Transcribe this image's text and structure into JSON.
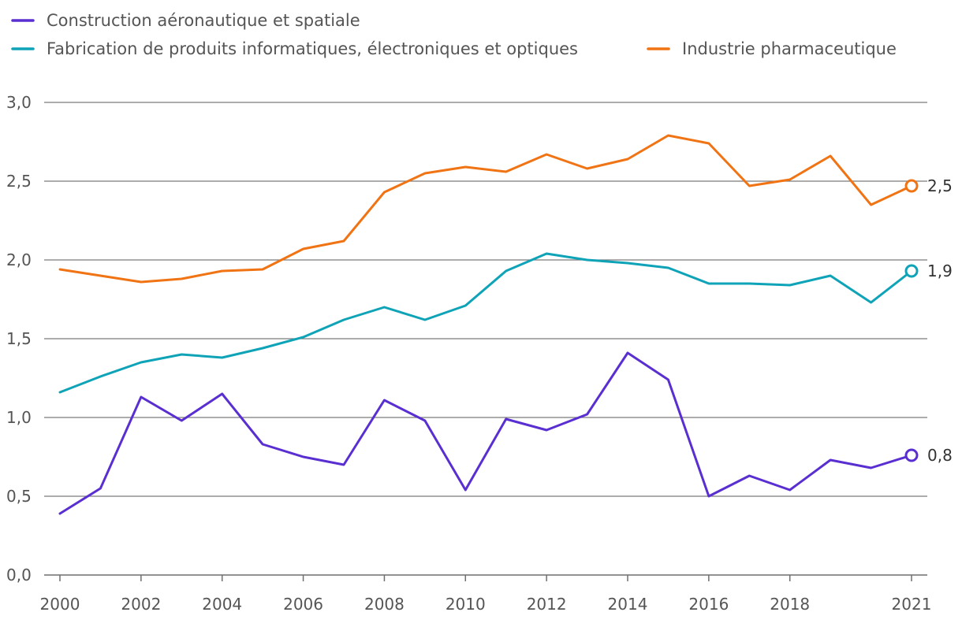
{
  "chart_data": {
    "type": "line",
    "title": "",
    "xlabel": "",
    "ylabel": "",
    "xlim": [
      2000,
      2021
    ],
    "ylim": [
      0,
      3
    ],
    "x": [
      2000,
      2001,
      2002,
      2003,
      2004,
      2005,
      2006,
      2007,
      2008,
      2009,
      2010,
      2011,
      2012,
      2013,
      2014,
      2015,
      2016,
      2017,
      2018,
      2019,
      2020,
      2021
    ],
    "x_tick_labels": [
      "2000",
      "2002",
      "2004",
      "2006",
      "2008",
      "2010",
      "2012",
      "2014",
      "2016",
      "2018",
      "2021"
    ],
    "x_tick_values": [
      2000,
      2002,
      2004,
      2006,
      2008,
      2010,
      2012,
      2014,
      2016,
      2018,
      2021
    ],
    "y_tick_labels": [
      "0,0",
      "0,5",
      "1,0",
      "1,5",
      "2,0",
      "2,5",
      "3,0"
    ],
    "y_tick_values": [
      0,
      0.5,
      1.0,
      1.5,
      2.0,
      2.5,
      3.0
    ],
    "grid": true,
    "legend_position": "top-left",
    "series": [
      {
        "name": "Construction aéronautique et spatiale",
        "color": "#5a2fd1",
        "values": [
          0.39,
          0.55,
          1.13,
          0.98,
          1.15,
          0.83,
          0.75,
          0.7,
          1.11,
          0.98,
          0.54,
          0.99,
          0.92,
          1.02,
          1.41,
          1.24,
          0.5,
          0.63,
          0.54,
          0.73,
          0.68,
          0.76
        ],
        "end_label": "0,8"
      },
      {
        "name": "Fabrication de produits informatiques, électroniques et optiques",
        "color": "#0fa3b8",
        "values": [
          1.16,
          1.26,
          1.35,
          1.4,
          1.38,
          1.44,
          1.51,
          1.62,
          1.7,
          1.62,
          1.71,
          1.93,
          2.04,
          2.0,
          1.98,
          1.95,
          1.85,
          1.85,
          1.84,
          1.9,
          1.73,
          1.93
        ],
        "end_label": "1,9"
      },
      {
        "name": "Industrie pharmaceutique",
        "color": "#f07314",
        "values": [
          1.94,
          1.9,
          1.86,
          1.88,
          1.93,
          1.94,
          2.07,
          2.12,
          2.43,
          2.55,
          2.59,
          2.56,
          2.67,
          2.58,
          2.64,
          2.79,
          2.74,
          2.47,
          2.51,
          2.66,
          2.35,
          2.47
        ],
        "end_label": "2,5"
      }
    ]
  }
}
